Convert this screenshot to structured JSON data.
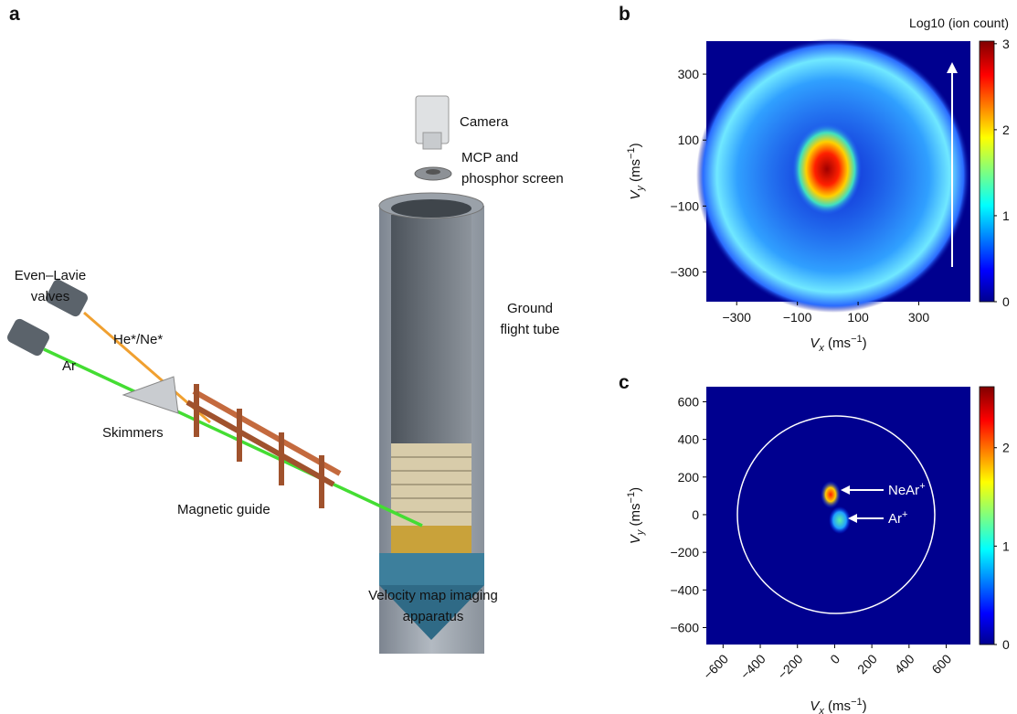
{
  "panel_labels": [
    "a",
    "b",
    "c"
  ],
  "diagram": {
    "labels": [
      [
        "Camera"
      ],
      [
        "MCP and",
        "phosphor screen"
      ],
      [
        "Ground",
        "flight tube"
      ],
      [
        "Even–Lavie",
        "valves"
      ],
      [
        "He*/Ne*"
      ],
      [
        "Ar"
      ],
      [
        "Skimmers"
      ],
      [
        "Magnetic guide"
      ],
      [
        "Velocity map imaging",
        "apparatus"
      ]
    ]
  },
  "chart_data": [
    {
      "type": "heatmap",
      "xlim": [
        -400,
        470
      ],
      "ylim": [
        -390,
        400
      ],
      "xticks": [
        {
          "value": -300,
          "label": "−300"
        },
        {
          "value": -100,
          "label": "−100"
        },
        100,
        300
      ],
      "yticks": [
        {
          "value": -300,
          "label": "−300"
        },
        {
          "value": -100,
          "label": "−100"
        },
        100,
        300
      ],
      "xlabel": [
        "V",
        "x",
        " (ms",
        "−1",
        ")"
      ],
      "ylabel": [
        "V",
        "y",
        " (ms",
        "−1",
        ")"
      ],
      "colorbar": {
        "title": "Log10 (ion count)",
        "clim": [
          0,
          3.03
        ],
        "ticks": [
          0,
          1,
          2,
          3
        ]
      }
    },
    {
      "type": "heatmap",
      "xlim": [
        -690,
        730
      ],
      "ylim": [
        -690,
        680
      ],
      "xticks": [
        {
          "value": -600,
          "label": "−600"
        },
        {
          "value": -400,
          "label": "−400"
        },
        {
          "value": -200,
          "label": "−200"
        },
        0,
        200,
        400,
        600
      ],
      "yticks": [
        {
          "value": -600,
          "label": "−600"
        },
        {
          "value": -400,
          "label": "−400"
        },
        {
          "value": -200,
          "label": "−200"
        },
        0,
        200,
        400,
        600
      ],
      "xlabel": [
        "V",
        "x",
        " (ms",
        "−1",
        ")"
      ],
      "ylabel": [
        "V",
        "y",
        " (ms",
        "−1",
        ")"
      ],
      "colorbar": {
        "clim": [
          0,
          2.62
        ],
        "ticks": [
          0,
          1,
          2
        ]
      },
      "annotations": [
        [
          "NeAr",
          "+"
        ],
        [
          "Ar",
          "+"
        ]
      ]
    }
  ]
}
